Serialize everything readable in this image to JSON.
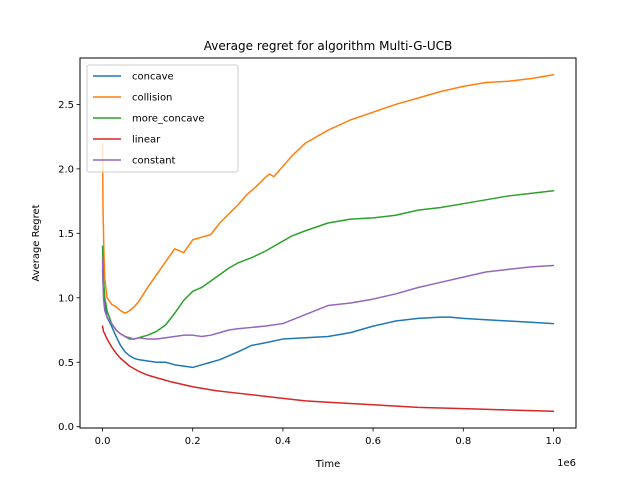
{
  "chart_data": {
    "type": "line",
    "title": "Average regret for algorithm Multi-G-UCB",
    "xlabel": "Time",
    "ylabel": "Average Regret",
    "x_scale_label": "1e6",
    "xlim": [
      -0.05,
      1.05
    ],
    "ylim": [
      -0.01,
      2.86
    ],
    "x_ticks": [
      0.0,
      0.2,
      0.4,
      0.6,
      0.8,
      1.0
    ],
    "x_tick_labels": [
      "0.0",
      "0.2",
      "0.4",
      "0.6",
      "0.8",
      "1.0"
    ],
    "y_ticks": [
      0.0,
      0.5,
      1.0,
      1.5,
      2.0,
      2.5
    ],
    "y_tick_labels": [
      "0.0",
      "0.5",
      "1.0",
      "1.5",
      "2.0",
      "2.5"
    ],
    "grid": false,
    "legend_position": "top-left",
    "series": [
      {
        "name": "concave",
        "color": "#1f77b4",
        "x": [
          0,
          0.002,
          0.005,
          0.01,
          0.02,
          0.03,
          0.04,
          0.05,
          0.06,
          0.07,
          0.08,
          0.1,
          0.12,
          0.14,
          0.16,
          0.18,
          0.2,
          0.22,
          0.24,
          0.26,
          0.28,
          0.3,
          0.33,
          0.36,
          0.4,
          0.45,
          0.5,
          0.55,
          0.6,
          0.65,
          0.7,
          0.75,
          0.77,
          0.8,
          0.85,
          0.9,
          0.95,
          1.0
        ],
        "y": [
          1.22,
          1.05,
          0.95,
          0.85,
          0.78,
          0.7,
          0.63,
          0.58,
          0.55,
          0.53,
          0.52,
          0.51,
          0.5,
          0.5,
          0.48,
          0.47,
          0.46,
          0.48,
          0.5,
          0.52,
          0.55,
          0.58,
          0.63,
          0.65,
          0.68,
          0.69,
          0.7,
          0.73,
          0.78,
          0.82,
          0.84,
          0.85,
          0.85,
          0.84,
          0.83,
          0.82,
          0.81,
          0.8
        ]
      },
      {
        "name": "collision",
        "color": "#ff7f0e",
        "x": [
          0,
          0.001,
          0.003,
          0.005,
          0.01,
          0.02,
          0.03,
          0.04,
          0.05,
          0.06,
          0.07,
          0.08,
          0.1,
          0.12,
          0.14,
          0.16,
          0.18,
          0.2,
          0.22,
          0.24,
          0.26,
          0.28,
          0.3,
          0.32,
          0.34,
          0.36,
          0.37,
          0.38,
          0.4,
          0.42,
          0.45,
          0.5,
          0.55,
          0.6,
          0.65,
          0.7,
          0.75,
          0.8,
          0.85,
          0.9,
          0.95,
          1.0
        ],
        "y": [
          2.2,
          1.7,
          1.35,
          1.15,
          1.0,
          0.95,
          0.93,
          0.9,
          0.88,
          0.9,
          0.93,
          0.97,
          1.08,
          1.18,
          1.28,
          1.38,
          1.35,
          1.45,
          1.47,
          1.49,
          1.58,
          1.65,
          1.72,
          1.8,
          1.86,
          1.93,
          1.96,
          1.94,
          2.02,
          2.1,
          2.2,
          2.3,
          2.38,
          2.44,
          2.5,
          2.55,
          2.6,
          2.64,
          2.67,
          2.68,
          2.7,
          2.73
        ]
      },
      {
        "name": "more_concave",
        "color": "#2ca02c",
        "x": [
          0,
          0.002,
          0.005,
          0.01,
          0.02,
          0.03,
          0.04,
          0.05,
          0.06,
          0.07,
          0.08,
          0.1,
          0.12,
          0.14,
          0.16,
          0.18,
          0.2,
          0.22,
          0.24,
          0.26,
          0.28,
          0.3,
          0.33,
          0.36,
          0.4,
          0.42,
          0.45,
          0.5,
          0.55,
          0.6,
          0.65,
          0.7,
          0.75,
          0.8,
          0.85,
          0.9,
          0.95,
          1.0
        ],
        "y": [
          1.4,
          1.15,
          1.0,
          0.9,
          0.8,
          0.75,
          0.72,
          0.7,
          0.68,
          0.68,
          0.69,
          0.71,
          0.74,
          0.79,
          0.88,
          0.98,
          1.05,
          1.08,
          1.13,
          1.18,
          1.23,
          1.27,
          1.31,
          1.36,
          1.44,
          1.48,
          1.52,
          1.58,
          1.61,
          1.62,
          1.64,
          1.68,
          1.7,
          1.73,
          1.76,
          1.79,
          1.81,
          1.83
        ]
      },
      {
        "name": "linear",
        "color": "#d62728",
        "x": [
          0,
          0.002,
          0.005,
          0.01,
          0.02,
          0.03,
          0.04,
          0.05,
          0.06,
          0.08,
          0.1,
          0.12,
          0.15,
          0.2,
          0.25,
          0.3,
          0.35,
          0.4,
          0.45,
          0.5,
          0.55,
          0.6,
          0.7,
          0.8,
          0.9,
          1.0
        ],
        "y": [
          0.78,
          0.74,
          0.72,
          0.68,
          0.62,
          0.57,
          0.53,
          0.5,
          0.47,
          0.43,
          0.4,
          0.38,
          0.35,
          0.31,
          0.28,
          0.26,
          0.24,
          0.22,
          0.2,
          0.19,
          0.18,
          0.17,
          0.15,
          0.14,
          0.13,
          0.12
        ]
      },
      {
        "name": "constant",
        "color": "#9467bd",
        "x": [
          0,
          0.002,
          0.005,
          0.01,
          0.02,
          0.03,
          0.04,
          0.05,
          0.06,
          0.07,
          0.08,
          0.1,
          0.12,
          0.14,
          0.16,
          0.18,
          0.2,
          0.22,
          0.24,
          0.26,
          0.28,
          0.3,
          0.33,
          0.36,
          0.4,
          0.45,
          0.5,
          0.55,
          0.6,
          0.65,
          0.7,
          0.75,
          0.8,
          0.85,
          0.9,
          0.95,
          1.0
        ],
        "y": [
          1.3,
          1.0,
          0.9,
          0.85,
          0.8,
          0.75,
          0.72,
          0.7,
          0.69,
          0.68,
          0.69,
          0.68,
          0.68,
          0.69,
          0.7,
          0.71,
          0.71,
          0.7,
          0.71,
          0.73,
          0.75,
          0.76,
          0.77,
          0.78,
          0.8,
          0.87,
          0.94,
          0.96,
          0.99,
          1.03,
          1.08,
          1.12,
          1.16,
          1.2,
          1.22,
          1.24,
          1.25
        ]
      }
    ]
  }
}
